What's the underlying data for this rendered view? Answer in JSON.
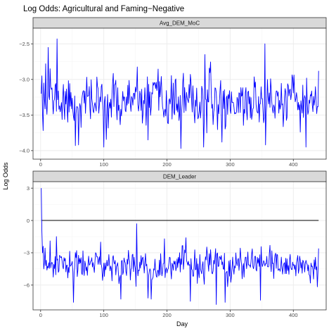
{
  "chart_data": {
    "type": "line",
    "title": "Log Odds: Agricultural and Faming−Negative",
    "xlabel": "Day",
    "ylabel": "Log Odds",
    "colors": {
      "series": "#0000ff",
      "reference": "#000000",
      "strip": "#d9d9d9",
      "grid": "#ebebeb"
    },
    "panels": [
      {
        "name": "Avg_DEM_MoC",
        "xlim": [
          -12,
          452
        ],
        "ylim": [
          -4.12,
          -2.28
        ],
        "yticks": [
          -4.0,
          -3.5,
          -3.0,
          -2.5
        ],
        "ytick_labels": [
          "−4.0",
          "−3.5",
          "−3.0",
          "−2.5"
        ],
        "xticks": [
          0,
          100,
          200,
          300,
          400
        ],
        "xtick_labels": [
          "0",
          "100",
          "200",
          "300",
          "400"
        ],
        "x_start": 1,
        "x_step": 1,
        "seed": 11,
        "generated": {
          "count": 440,
          "base": -3.32,
          "noise": 0.22,
          "smooth": 0.25,
          "min": -3.97,
          "max": -2.42
        },
        "anchors": [
          {
            "x": 1,
            "y": -3.2
          },
          {
            "x": 2,
            "y": -2.95
          },
          {
            "x": 3,
            "y": -3.48
          },
          {
            "x": 5,
            "y": -3.05
          },
          {
            "x": 8,
            "y": -2.78
          },
          {
            "x": 12,
            "y": -2.55
          },
          {
            "x": 15,
            "y": -2.85
          },
          {
            "x": 26,
            "y": -2.43
          },
          {
            "x": 55,
            "y": -3.93
          },
          {
            "x": 60,
            "y": -3.92
          },
          {
            "x": 100,
            "y": -3.95
          },
          {
            "x": 170,
            "y": -3.85
          },
          {
            "x": 222,
            "y": -3.97
          },
          {
            "x": 258,
            "y": -3.95
          },
          {
            "x": 260,
            "y": -2.65
          },
          {
            "x": 287,
            "y": -3.88
          },
          {
            "x": 355,
            "y": -2.5
          },
          {
            "x": 356,
            "y": -3.92
          },
          {
            "x": 420,
            "y": -3.95
          },
          {
            "x": 437,
            "y": -3.48
          },
          {
            "x": 440,
            "y": -2.88
          }
        ]
      },
      {
        "name": "DEM_Leader",
        "xlim": [
          -12,
          452
        ],
        "ylim": [
          -8.3,
          3.6
        ],
        "yticks": [
          -6,
          -3,
          0,
          3
        ],
        "ytick_labels": [
          "−6",
          "−3",
          "0",
          "3"
        ],
        "xticks": [
          0,
          100,
          200,
          300,
          400
        ],
        "xtick_labels": [
          "0",
          "100",
          "200",
          "300",
          "400"
        ],
        "reference_line": {
          "y": 0,
          "x_start": 1,
          "x_end": 440
        },
        "x_start": 1,
        "x_step": 1,
        "seed": 23,
        "generated": {
          "count": 440,
          "base": -4.2,
          "noise": 0.9,
          "smooth": 0.2,
          "min": -7.8,
          "max": -1.6
        },
        "anchors": [
          {
            "x": 1,
            "y": 3.0
          },
          {
            "x": 2,
            "y": -1.0
          },
          {
            "x": 3,
            "y": -3.0
          },
          {
            "x": 4,
            "y": -2.4
          },
          {
            "x": 5,
            "y": -4.5
          },
          {
            "x": 8,
            "y": -4.2
          },
          {
            "x": 12,
            "y": -4.4
          },
          {
            "x": 15,
            "y": -1.9
          },
          {
            "x": 25,
            "y": -1.5
          },
          {
            "x": 52,
            "y": -7.6
          },
          {
            "x": 95,
            "y": -2.0
          },
          {
            "x": 127,
            "y": -7.3
          },
          {
            "x": 152,
            "y": -0.3
          },
          {
            "x": 170,
            "y": -7.2
          },
          {
            "x": 175,
            "y": -7.3
          },
          {
            "x": 196,
            "y": -1.7
          },
          {
            "x": 237,
            "y": -7.5
          },
          {
            "x": 278,
            "y": -7.8
          },
          {
            "x": 292,
            "y": -7.6
          },
          {
            "x": 348,
            "y": -7.4
          },
          {
            "x": 437,
            "y": -4.3
          },
          {
            "x": 440,
            "y": -2.6
          }
        ]
      }
    ]
  }
}
